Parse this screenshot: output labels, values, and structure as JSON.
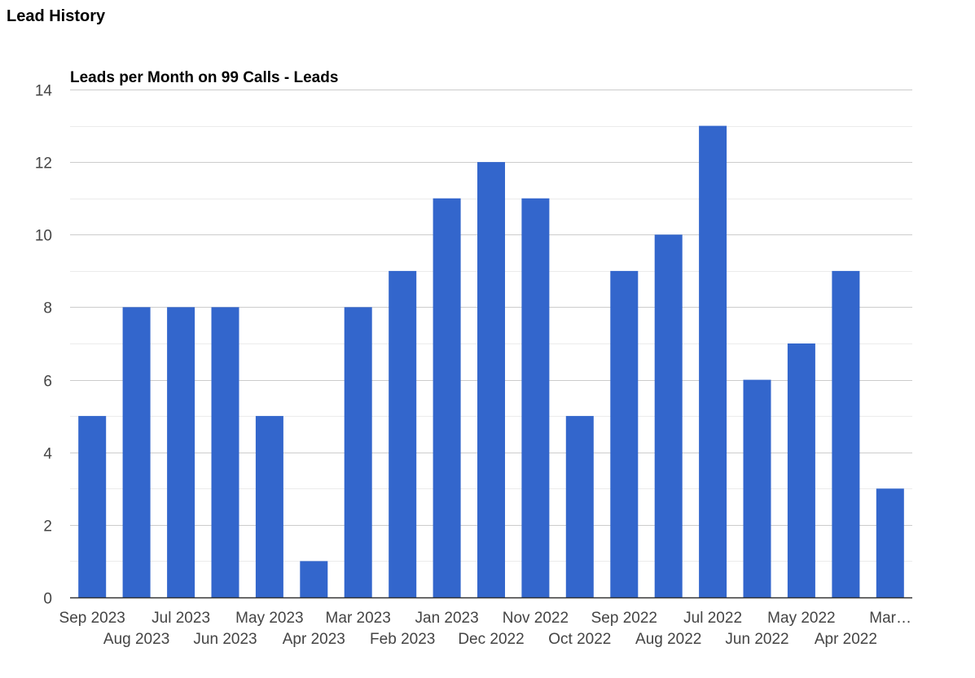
{
  "page": {
    "title": "Lead History"
  },
  "chart_data": {
    "type": "bar",
    "title": "Leads per Month on 99 Calls - Leads",
    "xlabel": "",
    "ylabel": "",
    "categories": [
      "Sep 2023",
      "Aug 2023",
      "Jul 2023",
      "Jun 2023",
      "May 2023",
      "Apr 2023",
      "Mar 2023",
      "Feb 2023",
      "Jan 2023",
      "Dec 2022",
      "Nov 2022",
      "Oct 2022",
      "Sep 2022",
      "Aug 2022",
      "Jul 2022",
      "Jun 2022",
      "May 2022",
      "Apr 2022",
      "Mar…"
    ],
    "values": [
      5,
      8,
      8,
      8,
      5,
      1,
      8,
      9,
      11,
      12,
      11,
      5,
      9,
      10,
      13,
      6,
      7,
      9,
      3
    ],
    "ylim": [
      0,
      14
    ],
    "yticks": [
      0,
      2,
      4,
      6,
      8,
      10,
      12,
      14
    ],
    "grid": true,
    "legend": "none",
    "bar_color": "#3366cc"
  }
}
